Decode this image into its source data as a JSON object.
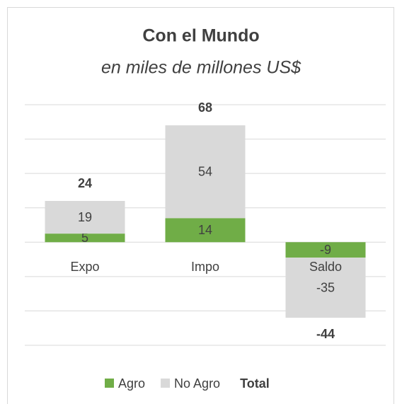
{
  "chart_data": {
    "type": "stacked_bar",
    "title": "Con el Mundo",
    "subtitle": "en miles de millones US$",
    "categories": [
      "Expo",
      "Impo",
      "Saldo"
    ],
    "series": [
      {
        "name": "Agro",
        "color": "#70ad47",
        "values": [
          5,
          14,
          -9
        ]
      },
      {
        "name": "No Agro",
        "color": "#d9d9d9",
        "values": [
          19,
          54,
          -35
        ]
      },
      {
        "name": "Total",
        "values": [
          24,
          68,
          -44
        ]
      }
    ],
    "ylim": [
      -60,
      80
    ],
    "yticks": [
      -60,
      -40,
      -20,
      0,
      20,
      40,
      60,
      80
    ],
    "grid": true
  }
}
